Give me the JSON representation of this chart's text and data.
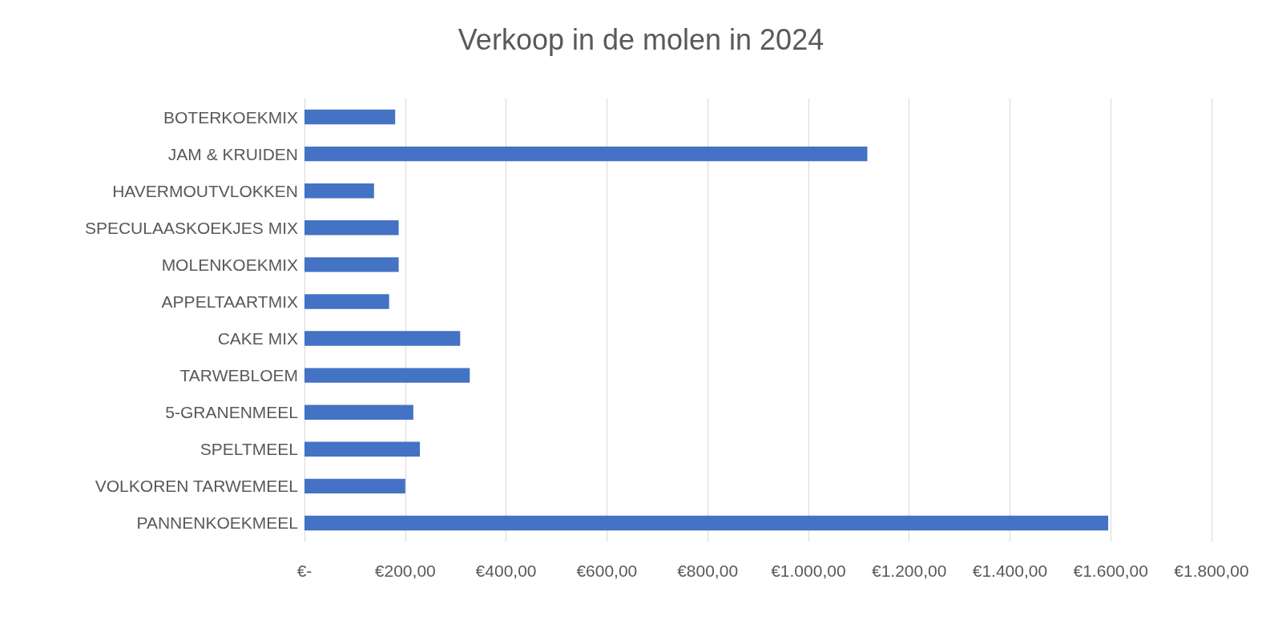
{
  "chart_data": {
    "type": "bar",
    "orientation": "horizontal",
    "title": "Verkoop in de molen in 2024",
    "categories": [
      "BOTERKOEKMIX",
      "JAM & KRUIDEN",
      "HAVERMOUTVLOKKEN",
      "SPECULAASKOEKJES MIX",
      "MOLENKOEKMIX",
      "APPELTAARTMIX",
      "CAKE MIX",
      "TARWEBLOEM",
      "5-GRANENMEEL",
      "SPELTMEEL",
      "VOLKOREN TARWEMEEL",
      "PANNENKOEKMEEL"
    ],
    "values": [
      180,
      1117,
      138,
      187,
      187,
      168,
      309,
      328,
      216,
      229,
      200,
      1595
    ],
    "color": "#4472c4",
    "xlim": [
      0,
      1800
    ],
    "xticks": [
      {
        "value": 0,
        "label": "€-"
      },
      {
        "value": 200,
        "label": "€200,00"
      },
      {
        "value": 400,
        "label": "€400,00"
      },
      {
        "value": 600,
        "label": "€600,00"
      },
      {
        "value": 800,
        "label": "€800,00"
      },
      {
        "value": 1000,
        "label": "€1.000,00"
      },
      {
        "value": 1200,
        "label": "€1.200,00"
      },
      {
        "value": 1400,
        "label": "€1.400,00"
      },
      {
        "value": 1600,
        "label": "€1.600,00"
      },
      {
        "value": 1800,
        "label": "€1.800,00"
      }
    ],
    "grid": "x"
  }
}
